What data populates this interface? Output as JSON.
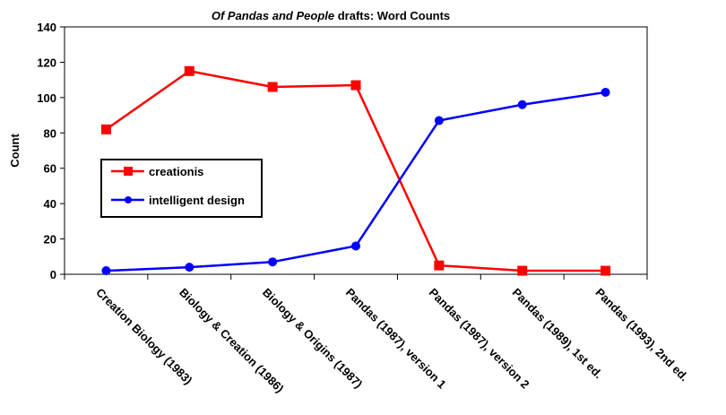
{
  "chart_data": {
    "type": "line",
    "title_italic": "Of Pandas and People",
    "title_rest": " drafts: Word Counts",
    "xlabel": "",
    "ylabel": "Count",
    "ylim": [
      0,
      140
    ],
    "yticks": [
      0,
      20,
      40,
      60,
      80,
      100,
      120,
      140
    ],
    "grid": false,
    "legend_position": "left-middle",
    "categories": [
      "Creation Biology (1983)",
      "Biology & Creation (1986)",
      "Biology & Origins (1987)",
      "Pandas (1987), version 1",
      "Pandas (1987), version 2",
      "Pandas (1989), 1st ed.",
      "Pandas (1993), 2nd ed."
    ],
    "series": [
      {
        "name": "creationis",
        "color": "#ff0000",
        "marker": "square",
        "values": [
          82,
          115,
          106,
          107,
          5,
          2,
          2
        ]
      },
      {
        "name": "intelligent design",
        "color": "#0000ff",
        "marker": "circle",
        "values": [
          2,
          4,
          7,
          16,
          87,
          96,
          103
        ]
      }
    ]
  }
}
